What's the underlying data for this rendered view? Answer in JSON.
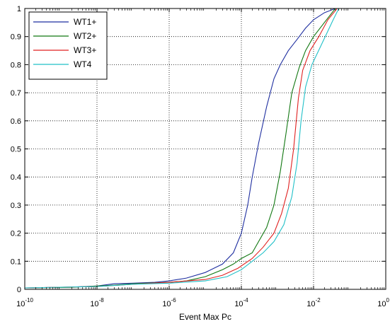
{
  "chart_data": {
    "type": "line",
    "title": "",
    "xlabel": "Event Max Pc",
    "ylabel": "",
    "x_scale": "log",
    "xlim": [
      1e-10,
      1
    ],
    "ylim": [
      0,
      1
    ],
    "grid": true,
    "legend_position": "top-left",
    "x_tick_labels": [
      {
        "base": "10",
        "exp": "-10"
      },
      {
        "base": "10",
        "exp": "-8"
      },
      {
        "base": "10",
        "exp": "-6"
      },
      {
        "base": "10",
        "exp": "-4"
      },
      {
        "base": "10",
        "exp": "-2"
      },
      {
        "base": "10",
        "exp": "0"
      }
    ],
    "y_tick_labels": [
      "0",
      "0.1",
      "0.2",
      "0.3",
      "0.4",
      "0.5",
      "0.6",
      "0.7",
      "0.8",
      "0.9",
      "1"
    ],
    "series": [
      {
        "name": "WT1+",
        "color": "#1f2fa0",
        "points": [
          [
            1e-10,
            0.005
          ],
          [
            2e-09,
            0.008
          ],
          [
            1e-08,
            0.012
          ],
          [
            3e-08,
            0.02
          ],
          [
            1e-07,
            0.022
          ],
          [
            4e-07,
            0.025
          ],
          [
            1e-06,
            0.03
          ],
          [
            3e-06,
            0.04
          ],
          [
            1e-05,
            0.06
          ],
          [
            3e-05,
            0.09
          ],
          [
            6e-05,
            0.13
          ],
          [
            0.0001,
            0.2
          ],
          [
            0.00015,
            0.3
          ],
          [
            0.0002,
            0.4
          ],
          [
            0.0003,
            0.52
          ],
          [
            0.0005,
            0.65
          ],
          [
            0.0008,
            0.75
          ],
          [
            0.0012,
            0.8
          ],
          [
            0.002,
            0.85
          ],
          [
            0.0035,
            0.89
          ],
          [
            0.006,
            0.93
          ],
          [
            0.01,
            0.96
          ],
          [
            0.02,
            0.985
          ],
          [
            0.04,
            1.0
          ],
          [
            1,
            1.0
          ]
        ]
      },
      {
        "name": "WT2+",
        "color": "#117711",
        "points": [
          [
            1e-10,
            0.005
          ],
          [
            2e-09,
            0.007
          ],
          [
            1e-08,
            0.012
          ],
          [
            3e-08,
            0.015
          ],
          [
            1e-07,
            0.02
          ],
          [
            1e-06,
            0.025
          ],
          [
            3e-06,
            0.03
          ],
          [
            1e-05,
            0.045
          ],
          [
            3e-05,
            0.07
          ],
          [
            6e-05,
            0.09
          ],
          [
            0.0001,
            0.11
          ],
          [
            0.0002,
            0.13
          ],
          [
            0.0003,
            0.17
          ],
          [
            0.0005,
            0.22
          ],
          [
            0.0008,
            0.3
          ],
          [
            0.0012,
            0.42
          ],
          [
            0.0017,
            0.55
          ],
          [
            0.0025,
            0.7
          ],
          [
            0.004,
            0.79
          ],
          [
            0.006,
            0.85
          ],
          [
            0.01,
            0.9
          ],
          [
            0.02,
            0.95
          ],
          [
            0.04,
            1.0
          ],
          [
            1,
            1.0
          ]
        ]
      },
      {
        "name": "WT3+",
        "color": "#e02020",
        "points": [
          [
            1e-10,
            0.005
          ],
          [
            1e-08,
            0.01
          ],
          [
            1e-07,
            0.018
          ],
          [
            1e-06,
            0.025
          ],
          [
            1e-05,
            0.035
          ],
          [
            3e-05,
            0.05
          ],
          [
            8e-05,
            0.075
          ],
          [
            0.0002,
            0.11
          ],
          [
            0.0004,
            0.15
          ],
          [
            0.0008,
            0.2
          ],
          [
            0.0013,
            0.27
          ],
          [
            0.002,
            0.36
          ],
          [
            0.0028,
            0.5
          ],
          [
            0.0038,
            0.68
          ],
          [
            0.005,
            0.78
          ],
          [
            0.008,
            0.85
          ],
          [
            0.014,
            0.9
          ],
          [
            0.025,
            0.96
          ],
          [
            0.045,
            1.0
          ],
          [
            1,
            1.0
          ]
        ]
      },
      {
        "name": "WT4",
        "color": "#20c0c8",
        "points": [
          [
            1e-10,
            0.005
          ],
          [
            1e-08,
            0.01
          ],
          [
            1e-07,
            0.018
          ],
          [
            1e-06,
            0.022
          ],
          [
            1e-05,
            0.03
          ],
          [
            4e-05,
            0.045
          ],
          [
            0.0001,
            0.07
          ],
          [
            0.0002,
            0.1
          ],
          [
            0.0004,
            0.13
          ],
          [
            0.0008,
            0.17
          ],
          [
            0.0015,
            0.23
          ],
          [
            0.0025,
            0.33
          ],
          [
            0.0035,
            0.45
          ],
          [
            0.0045,
            0.6
          ],
          [
            0.006,
            0.72
          ],
          [
            0.009,
            0.8
          ],
          [
            0.015,
            0.86
          ],
          [
            0.025,
            0.92
          ],
          [
            0.035,
            0.96
          ],
          [
            0.05,
            1.0
          ],
          [
            1,
            1.0
          ]
        ]
      }
    ]
  }
}
